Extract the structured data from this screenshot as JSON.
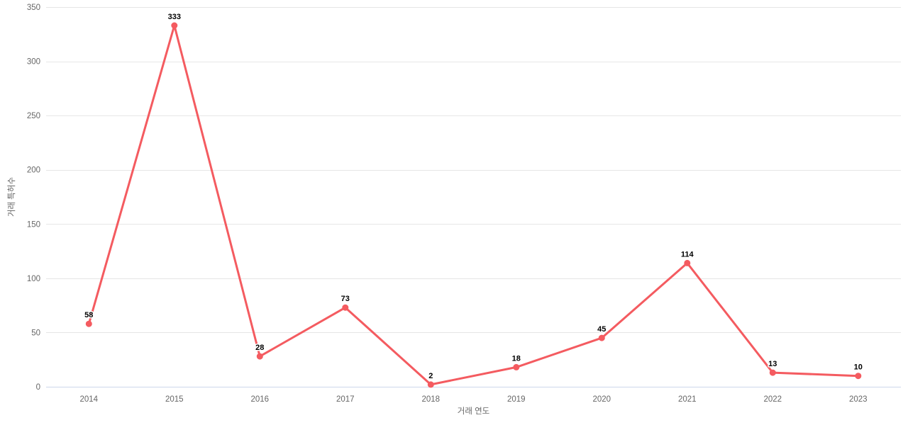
{
  "chart_data": {
    "type": "line",
    "title": "",
    "xlabel": "거래 연도",
    "ylabel": "거래 특허수",
    "categories": [
      "2014",
      "2015",
      "2016",
      "2017",
      "2018",
      "2019",
      "2020",
      "2021",
      "2022",
      "2023"
    ],
    "series": [
      {
        "name": "거래 특허수",
        "values": [
          58,
          333,
          28,
          73,
          2,
          18,
          45,
          114,
          13,
          10
        ],
        "color": "#f45b60"
      }
    ],
    "data_labels": [
      "58",
      "333",
      "28",
      "73",
      "2",
      "18",
      "45",
      "114",
      "13",
      "10"
    ],
    "ylim": [
      0,
      350
    ],
    "yticks": [
      0,
      50,
      100,
      150,
      200,
      250,
      300,
      350
    ],
    "grid": true,
    "legend_position": "none",
    "colors": {
      "series": "#f45b60",
      "gridline": "#e6e6e6",
      "axis_line": "#ccd6eb",
      "tick_label": "#666666",
      "axis_title": "#666666",
      "data_label": "#000000",
      "background": "#ffffff"
    }
  }
}
